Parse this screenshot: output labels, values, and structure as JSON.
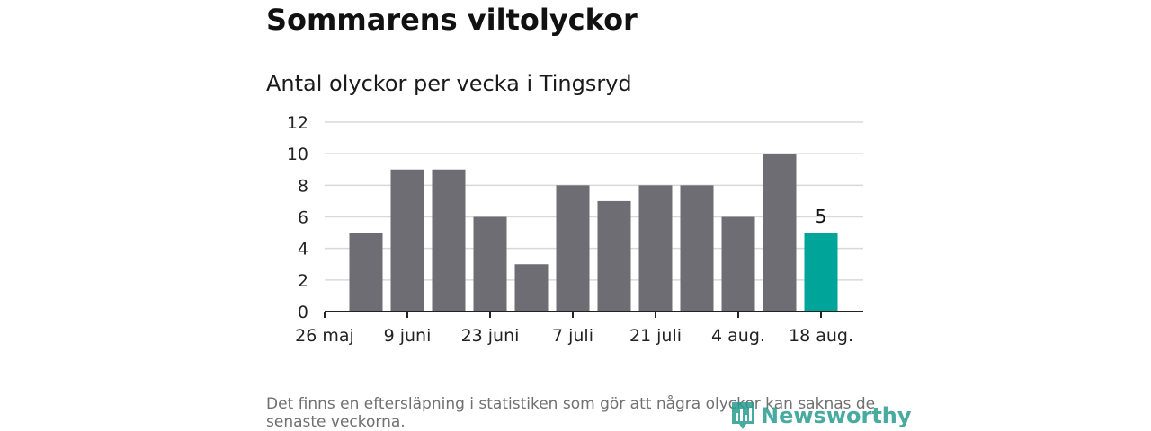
{
  "title": "Sommarens viltolyckor",
  "subtitle": "Antal olyckor per vecka i Tingsryd",
  "footnote": "Det finns en eftersläpning i statistiken som gör att några olyckor kan saknas de senaste veckorna.",
  "logo_text": "Newsworthy",
  "colors": {
    "bar": "#6e6d73",
    "highlight": "#00a499",
    "grid": "#d9d9d9",
    "axis": "#222222",
    "logo": "#2a9d8f"
  },
  "chart_data": {
    "type": "bar",
    "title": "Antal olyckor per vecka i Tingsryd",
    "xlabel": "",
    "ylabel": "",
    "ylim": [
      0,
      12
    ],
    "yticks": [
      "0",
      "2",
      "4",
      "6",
      "8",
      "10",
      "12"
    ],
    "xtick_labels": [
      "26 maj",
      "9 juni",
      "23 juni",
      "7 juli",
      "21 juli",
      "4 aug.",
      "18 aug."
    ],
    "categories": [
      "26 maj",
      "2 juni",
      "9 juni",
      "16 juni",
      "23 juni",
      "30 juni",
      "7 juli",
      "14 juli",
      "21 juli",
      "28 juli",
      "4 aug.",
      "11 aug.",
      "18 aug."
    ],
    "values": [
      0,
      5,
      9,
      9,
      6,
      3,
      8,
      7,
      8,
      8,
      6,
      10,
      5
    ],
    "highlight_index": 12,
    "data_labels": [
      {
        "index": 12,
        "text": "5"
      }
    ],
    "grid": true
  }
}
